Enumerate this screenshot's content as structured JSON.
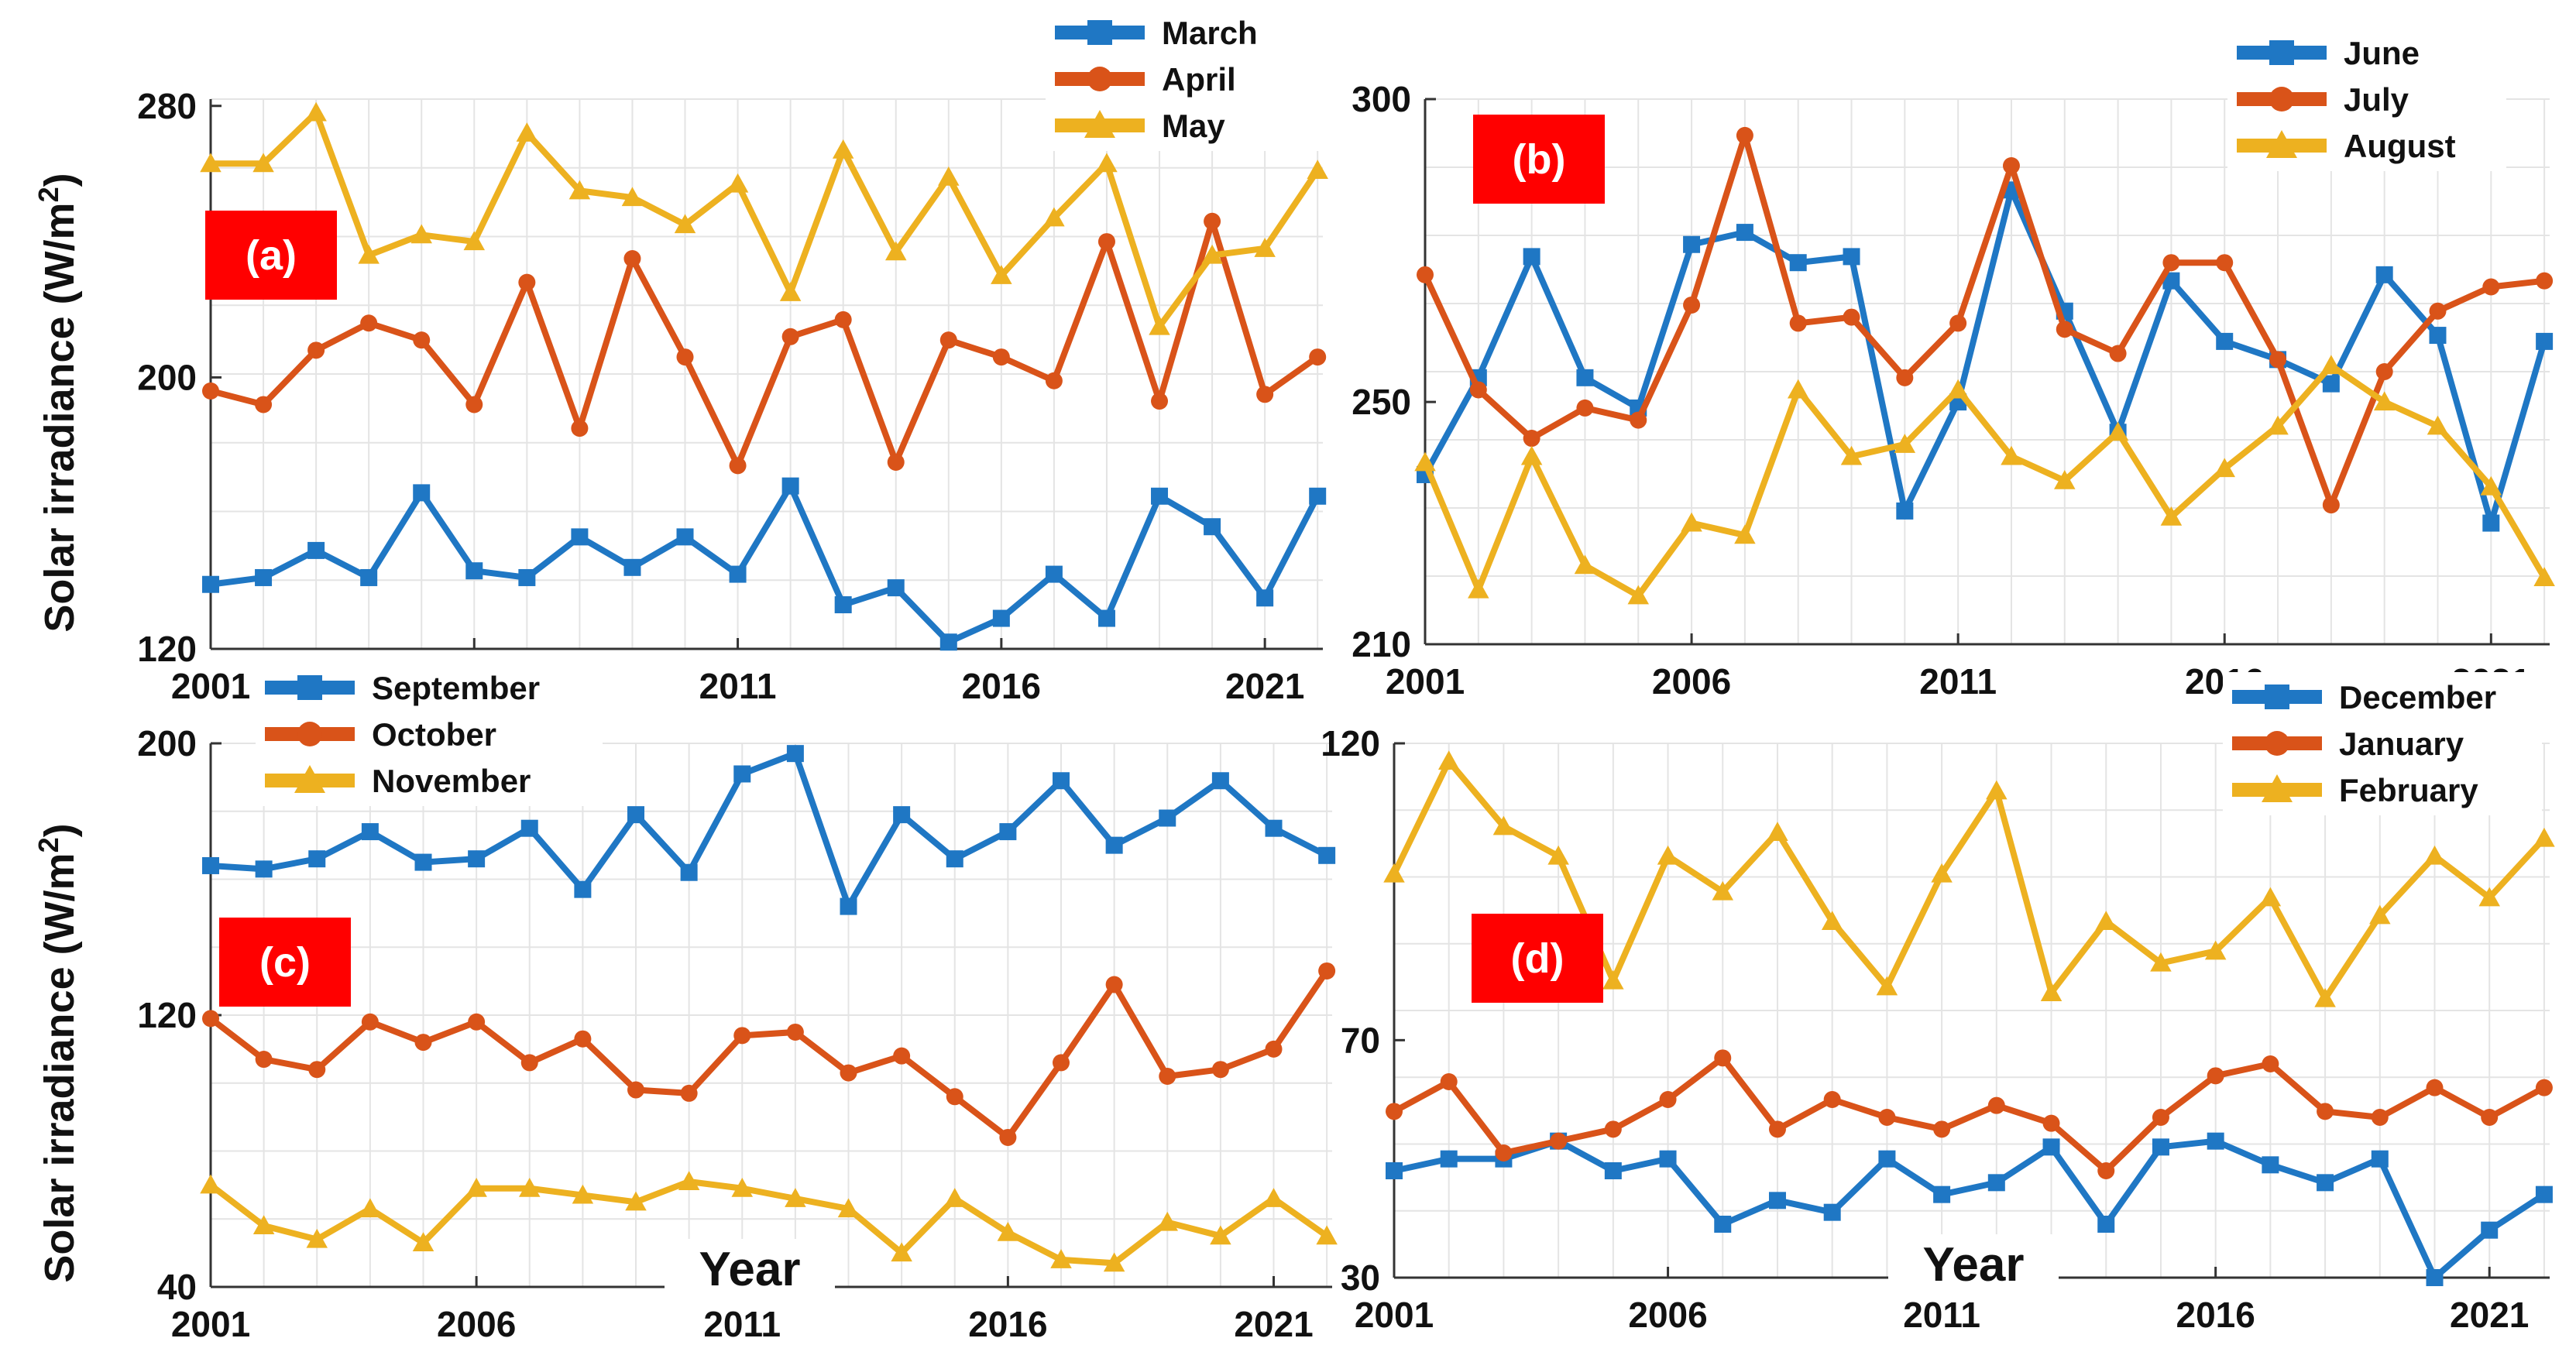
{
  "figure": {
    "ylabel": "Solar irradiance (W/m",
    "ylabel_sup": "2",
    "ylabel_close": ")",
    "xlabel": "Year",
    "colors": {
      "series1": "#1f77c4",
      "series2": "#d95319",
      "series3": "#edb120",
      "panel_label_bg": "#ff0000",
      "grid": "#e4e4e4"
    }
  },
  "chart_data": [
    {
      "type": "line",
      "panel_label": "(a)",
      "x": [
        2001,
        2002,
        2003,
        2004,
        2005,
        2006,
        2007,
        2008,
        2009,
        2010,
        2011,
        2012,
        2013,
        2014,
        2015,
        2016,
        2017,
        2018,
        2019,
        2020,
        2021,
        2022
      ],
      "xticks": [
        2001,
        2006,
        2011,
        2016,
        2021
      ],
      "yticks": [
        120,
        200,
        280
      ],
      "ylim": [
        120,
        282
      ],
      "xlim": [
        2001,
        2022.1
      ],
      "legend_position": "top-right",
      "series": [
        {
          "name": "March",
          "marker": "square",
          "values": [
            139,
            141,
            149,
            141,
            166,
            143,
            141,
            153,
            144,
            153,
            142,
            168,
            133,
            138,
            122,
            129,
            142,
            129,
            165,
            156,
            135,
            165
          ]
        },
        {
          "name": "April",
          "marker": "circle",
          "values": [
            196,
            192,
            208,
            216,
            211,
            192,
            228,
            185,
            235,
            206,
            174,
            212,
            217,
            175,
            211,
            206,
            199,
            240,
            193,
            246,
            195,
            206
          ]
        },
        {
          "name": "May",
          "marker": "triangle",
          "values": [
            263,
            263,
            278,
            236,
            242,
            240,
            272,
            255,
            253,
            245,
            257,
            225,
            267,
            237,
            259,
            230,
            247,
            263,
            215,
            236,
            238,
            261
          ]
        }
      ]
    },
    {
      "type": "line",
      "panel_label": "(b)",
      "x": [
        2001,
        2002,
        2003,
        2004,
        2005,
        2006,
        2007,
        2008,
        2009,
        2010,
        2011,
        2012,
        2013,
        2014,
        2015,
        2016,
        2017,
        2018,
        2019,
        2020,
        2021,
        2022
      ],
      "xticks": [
        2001,
        2006,
        2011,
        2016,
        2021
      ],
      "yticks": [
        210,
        250,
        300
      ],
      "ylim": [
        210,
        300
      ],
      "xlim": [
        2001,
        2022.1
      ],
      "legend_position": "top-right",
      "series": [
        {
          "name": "June",
          "marker": "square",
          "values": [
            238,
            254,
            274,
            254,
            249,
            276,
            278,
            273,
            274,
            232,
            250,
            285,
            265,
            245,
            270,
            260,
            257,
            253,
            271,
            261,
            230,
            260
          ]
        },
        {
          "name": "July",
          "marker": "circle",
          "values": [
            271,
            252,
            244,
            249,
            247,
            266,
            294,
            263,
            264,
            254,
            263,
            289,
            262,
            258,
            273,
            273,
            257,
            233,
            255,
            265,
            269,
            270
          ]
        },
        {
          "name": "August",
          "marker": "triangle",
          "values": [
            240,
            219,
            241,
            223,
            218,
            230,
            228,
            252,
            241,
            243,
            252,
            241,
            237,
            245,
            231,
            239,
            246,
            256,
            250,
            246,
            236,
            221
          ]
        }
      ]
    },
    {
      "type": "line",
      "panel_label": "(c)",
      "x": [
        2001,
        2002,
        2003,
        2004,
        2005,
        2006,
        2007,
        2008,
        2009,
        2010,
        2011,
        2012,
        2013,
        2014,
        2015,
        2016,
        2017,
        2018,
        2019,
        2020,
        2021,
        2022
      ],
      "xticks": [
        2001,
        2006,
        2011,
        2016,
        2021
      ],
      "yticks": [
        40,
        120,
        200
      ],
      "ylim": [
        40,
        200
      ],
      "xlim": [
        2001,
        2022.1
      ],
      "legend_position": "top-left",
      "series": [
        {
          "name": "September",
          "marker": "square",
          "values": [
            164,
            163,
            166,
            174,
            165,
            166,
            175,
            157,
            179,
            162,
            191,
            197,
            152,
            179,
            166,
            174,
            189,
            170,
            178,
            189,
            175,
            167
          ]
        },
        {
          "name": "October",
          "marker": "circle",
          "values": [
            119,
            107,
            104,
            118,
            112,
            118,
            106,
            113,
            98,
            97,
            114,
            115,
            103,
            108,
            96,
            84,
            106,
            129,
            102,
            104,
            110,
            133
          ]
        },
        {
          "name": "November",
          "marker": "triangle",
          "values": [
            70,
            58,
            54,
            63,
            53,
            69,
            69,
            67,
            65,
            71,
            69,
            66,
            63,
            50,
            66,
            56,
            48,
            47,
            59,
            55,
            66,
            55
          ]
        }
      ]
    },
    {
      "type": "line",
      "panel_label": "(d)",
      "x": [
        2001,
        2002,
        2003,
        2004,
        2005,
        2006,
        2007,
        2008,
        2009,
        2010,
        2011,
        2012,
        2013,
        2014,
        2015,
        2016,
        2017,
        2018,
        2019,
        2020,
        2021,
        2022
      ],
      "xticks": [
        2001,
        2006,
        2011,
        2016,
        2021
      ],
      "yticks": [
        30,
        70,
        120
      ],
      "ylim": [
        30,
        120
      ],
      "xlim": [
        2001,
        2022.1
      ],
      "legend_position": "top-right",
      "series": [
        {
          "name": "December",
          "marker": "square",
          "values": [
            48,
            50,
            50,
            53,
            48,
            50,
            39,
            43,
            41,
            50,
            44,
            46,
            52,
            39,
            52,
            53,
            49,
            46,
            50,
            30,
            38,
            44
          ]
        },
        {
          "name": "January",
          "marker": "circle",
          "values": [
            58,
            63,
            51,
            53,
            55,
            60,
            67,
            55,
            60,
            57,
            55,
            59,
            56,
            48,
            57,
            64,
            66,
            58,
            57,
            62,
            57,
            62
          ]
        },
        {
          "name": "February",
          "marker": "triangle",
          "values": [
            98,
            117,
            106,
            101,
            80,
            101,
            95,
            105,
            90,
            79,
            98,
            112,
            78,
            90,
            83,
            85,
            94,
            77,
            91,
            101,
            94,
            104
          ]
        }
      ]
    }
  ]
}
